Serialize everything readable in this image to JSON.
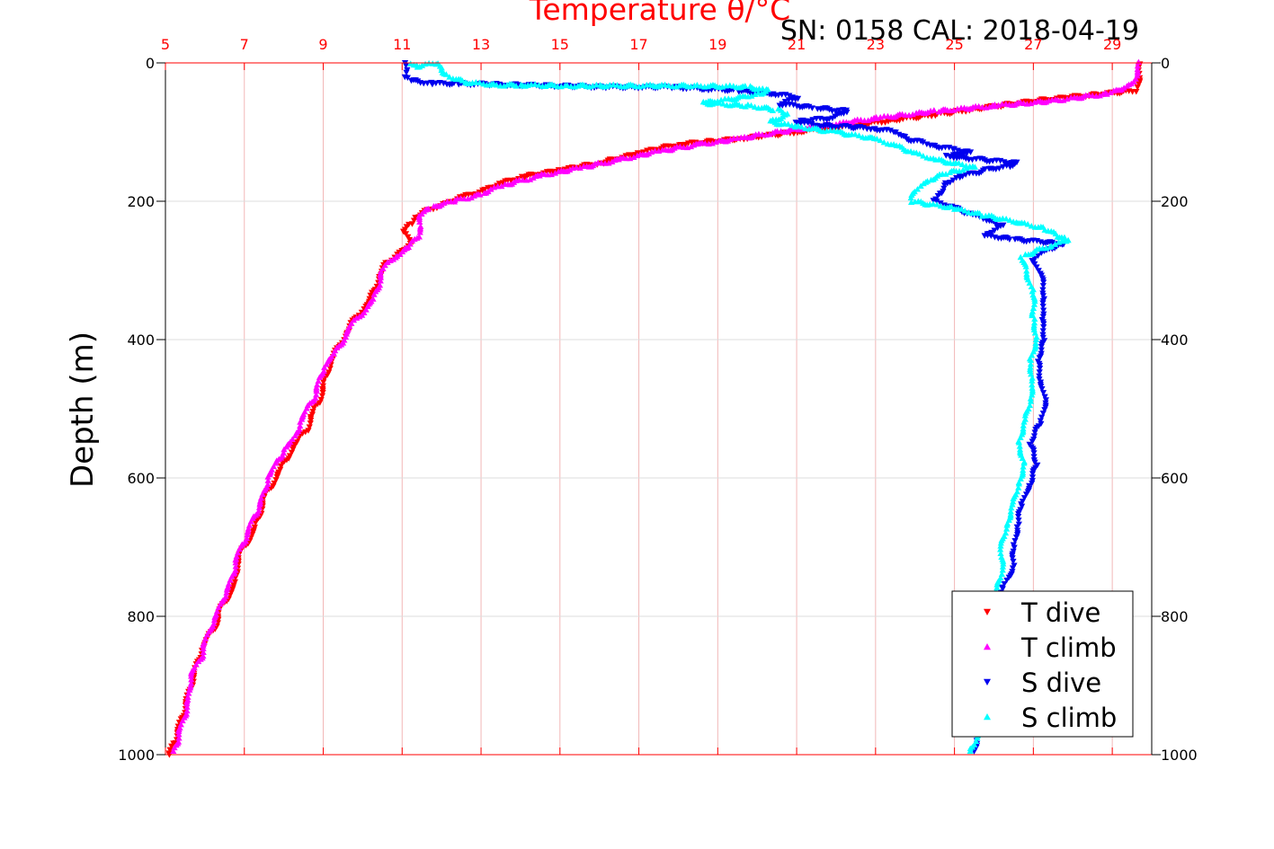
{
  "chart_data": {
    "type": "scatter",
    "title": "Temperature θ/°C",
    "annotation": "SN: 0158  CAL: 2018-04-19",
    "ylabel": "Depth (m)",
    "xlim": [
      5,
      30
    ],
    "ylim": [
      0,
      1000
    ],
    "y_reversed": true,
    "x_ticks": [
      5,
      7,
      9,
      11,
      13,
      15,
      17,
      19,
      21,
      23,
      25,
      27,
      29
    ],
    "y_ticks": [
      0,
      200,
      400,
      600,
      800,
      1000
    ],
    "grid": true,
    "legend_position": "bottom-right",
    "colors": {
      "axis": "#ff0000",
      "t_dive": "#ff0000",
      "t_climb": "#ff00ff",
      "s_dive": "#0000ee",
      "s_climb": "#00ffff"
    },
    "series": [
      {
        "name": "T dive",
        "marker": "triangle-down",
        "color": "#ff0000",
        "points": [
          [
            29.7,
            0
          ],
          [
            29.7,
            20
          ],
          [
            29.6,
            40
          ],
          [
            27.0,
            55
          ],
          [
            24.5,
            75
          ],
          [
            22.5,
            90
          ],
          [
            21.0,
            100
          ],
          [
            19.5,
            110
          ],
          [
            18.0,
            118
          ],
          [
            17.0,
            130
          ],
          [
            16.0,
            145
          ],
          [
            15.0,
            155
          ],
          [
            14.0,
            165
          ],
          [
            13.5,
            175
          ],
          [
            13.0,
            185
          ],
          [
            12.5,
            195
          ],
          [
            12.0,
            205
          ],
          [
            11.6,
            215
          ],
          [
            11.3,
            225
          ],
          [
            11.2,
            235
          ],
          [
            11.0,
            245
          ],
          [
            11.3,
            260
          ],
          [
            10.9,
            275
          ],
          [
            10.6,
            290
          ],
          [
            10.4,
            310
          ],
          [
            10.3,
            330
          ],
          [
            10.1,
            350
          ],
          [
            9.8,
            370
          ],
          [
            9.6,
            390
          ],
          [
            9.4,
            410
          ],
          [
            9.2,
            430
          ],
          [
            9.1,
            450
          ],
          [
            9.0,
            470
          ],
          [
            8.9,
            490
          ],
          [
            8.7,
            510
          ],
          [
            8.6,
            530
          ],
          [
            8.3,
            550
          ],
          [
            8.1,
            570
          ],
          [
            7.9,
            590
          ],
          [
            7.7,
            610
          ],
          [
            7.5,
            630
          ],
          [
            7.4,
            650
          ],
          [
            7.3,
            670
          ],
          [
            7.1,
            690
          ],
          [
            6.9,
            710
          ],
          [
            6.8,
            730
          ],
          [
            6.8,
            750
          ],
          [
            6.6,
            770
          ],
          [
            6.4,
            790
          ],
          [
            6.3,
            810
          ],
          [
            6.1,
            830
          ],
          [
            5.9,
            850
          ],
          [
            5.8,
            870
          ],
          [
            5.7,
            890
          ],
          [
            5.6,
            910
          ],
          [
            5.5,
            930
          ],
          [
            5.4,
            950
          ],
          [
            5.3,
            970
          ],
          [
            5.2,
            985
          ],
          [
            5.1,
            1000
          ]
        ]
      },
      {
        "name": "T climb",
        "marker": "triangle-up",
        "color": "#ff00ff",
        "points": [
          [
            29.7,
            0
          ],
          [
            29.6,
            20
          ],
          [
            29.4,
            35
          ],
          [
            28.8,
            45
          ],
          [
            27.5,
            55
          ],
          [
            26.0,
            62
          ],
          [
            24.5,
            70
          ],
          [
            23.0,
            80
          ],
          [
            21.8,
            90
          ],
          [
            20.5,
            100
          ],
          [
            19.5,
            110
          ],
          [
            18.5,
            118
          ],
          [
            17.5,
            128
          ],
          [
            16.5,
            140
          ],
          [
            15.5,
            152
          ],
          [
            14.5,
            163
          ],
          [
            13.5,
            178
          ],
          [
            13.0,
            190
          ],
          [
            12.3,
            200
          ],
          [
            11.7,
            210
          ],
          [
            11.4,
            220
          ],
          [
            11.5,
            235
          ],
          [
            11.4,
            250
          ],
          [
            11.2,
            265
          ],
          [
            10.8,
            280
          ],
          [
            10.5,
            300
          ],
          [
            10.4,
            320
          ],
          [
            10.3,
            340
          ],
          [
            10.0,
            360
          ],
          [
            9.7,
            380
          ],
          [
            9.5,
            400
          ],
          [
            9.3,
            420
          ],
          [
            9.0,
            440
          ],
          [
            8.9,
            460
          ],
          [
            8.8,
            480
          ],
          [
            8.6,
            500
          ],
          [
            8.4,
            520
          ],
          [
            8.3,
            540
          ],
          [
            8.0,
            560
          ],
          [
            7.8,
            580
          ],
          [
            7.6,
            600
          ],
          [
            7.5,
            620
          ],
          [
            7.4,
            640
          ],
          [
            7.2,
            660
          ],
          [
            7.1,
            680
          ],
          [
            6.9,
            700
          ],
          [
            6.8,
            720
          ],
          [
            6.7,
            740
          ],
          [
            6.6,
            760
          ],
          [
            6.4,
            780
          ],
          [
            6.3,
            800
          ],
          [
            6.1,
            820
          ],
          [
            6.0,
            840
          ],
          [
            5.9,
            860
          ],
          [
            5.7,
            880
          ],
          [
            5.6,
            900
          ],
          [
            5.6,
            920
          ],
          [
            5.5,
            940
          ],
          [
            5.4,
            960
          ],
          [
            5.3,
            980
          ],
          [
            5.2,
            995
          ]
        ]
      },
      {
        "name": "S dive",
        "marker": "triangle-down",
        "color": "#0000ee",
        "points": [
          [
            11.1,
            0
          ],
          [
            11.1,
            10
          ],
          [
            11.1,
            20
          ],
          [
            11.2,
            25
          ],
          [
            11.8,
            30
          ],
          [
            12.4,
            30
          ],
          [
            16.2,
            35
          ],
          [
            17.8,
            35
          ],
          [
            18.8,
            38
          ],
          [
            19.5,
            40
          ],
          [
            20.5,
            45
          ],
          [
            21.0,
            50
          ],
          [
            20.6,
            60
          ],
          [
            21.5,
            65
          ],
          [
            22.3,
            70
          ],
          [
            21.8,
            80
          ],
          [
            21.0,
            85
          ],
          [
            21.5,
            90
          ],
          [
            23.0,
            95
          ],
          [
            23.5,
            100
          ],
          [
            23.8,
            110
          ],
          [
            24.2,
            115
          ],
          [
            24.5,
            120
          ],
          [
            25.0,
            125
          ],
          [
            25.4,
            130
          ],
          [
            24.8,
            135
          ],
          [
            25.7,
            140
          ],
          [
            26.6,
            145
          ],
          [
            26.3,
            150
          ],
          [
            25.8,
            155
          ],
          [
            25.1,
            165
          ],
          [
            24.8,
            175
          ],
          [
            24.6,
            190
          ],
          [
            24.5,
            200
          ],
          [
            25.0,
            210
          ],
          [
            25.5,
            220
          ],
          [
            26.2,
            235
          ],
          [
            25.8,
            250
          ],
          [
            26.5,
            255
          ],
          [
            27.8,
            262
          ],
          [
            27.3,
            270
          ],
          [
            27.0,
            285
          ],
          [
            27.2,
            310
          ],
          [
            27.3,
            340
          ],
          [
            27.2,
            370
          ],
          [
            27.3,
            400
          ],
          [
            27.1,
            430
          ],
          [
            27.2,
            460
          ],
          [
            27.3,
            490
          ],
          [
            27.2,
            520
          ],
          [
            26.9,
            550
          ],
          [
            27.1,
            580
          ],
          [
            26.9,
            610
          ],
          [
            26.7,
            640
          ],
          [
            26.6,
            670
          ],
          [
            26.5,
            700
          ],
          [
            26.5,
            730
          ],
          [
            26.2,
            760
          ],
          [
            26.0,
            790
          ],
          [
            25.9,
            820
          ],
          [
            25.8,
            850
          ],
          [
            25.8,
            880
          ],
          [
            25.8,
            910
          ],
          [
            25.7,
            940
          ],
          [
            25.6,
            970
          ],
          [
            25.5,
            995
          ]
        ]
      },
      {
        "name": "S climb",
        "marker": "triangle-up",
        "color": "#00ffff",
        "points": [
          [
            11.2,
            0
          ],
          [
            11.4,
            5
          ],
          [
            11.9,
            0
          ],
          [
            12.0,
            10
          ],
          [
            12.2,
            20
          ],
          [
            12.6,
            28
          ],
          [
            13.4,
            32
          ],
          [
            14.0,
            32
          ],
          [
            15.2,
            33
          ],
          [
            16.0,
            33
          ],
          [
            18.5,
            33
          ],
          [
            19.8,
            35
          ],
          [
            20.3,
            40
          ],
          [
            20.0,
            45
          ],
          [
            19.6,
            50
          ],
          [
            18.6,
            58
          ],
          [
            19.8,
            62
          ],
          [
            20.5,
            68
          ],
          [
            20.8,
            75
          ],
          [
            20.3,
            85
          ],
          [
            21.0,
            92
          ],
          [
            22.0,
            100
          ],
          [
            23.0,
            110
          ],
          [
            23.5,
            120
          ],
          [
            24.0,
            130
          ],
          [
            24.5,
            140
          ],
          [
            25.0,
            145
          ],
          [
            25.5,
            150
          ],
          [
            24.8,
            160
          ],
          [
            24.3,
            170
          ],
          [
            24.0,
            185
          ],
          [
            23.9,
            200
          ],
          [
            25.0,
            210
          ],
          [
            25.7,
            220
          ],
          [
            26.6,
            230
          ],
          [
            27.3,
            240
          ],
          [
            27.6,
            250
          ],
          [
            27.9,
            255
          ],
          [
            27.4,
            265
          ],
          [
            26.7,
            280
          ],
          [
            26.8,
            300
          ],
          [
            27.0,
            330
          ],
          [
            27.0,
            370
          ],
          [
            27.1,
            400
          ],
          [
            26.9,
            430
          ],
          [
            27.0,
            460
          ],
          [
            26.9,
            490
          ],
          [
            26.8,
            520
          ],
          [
            26.6,
            550
          ],
          [
            26.8,
            580
          ],
          [
            26.6,
            610
          ],
          [
            26.5,
            640
          ],
          [
            26.3,
            670
          ],
          [
            26.2,
            700
          ],
          [
            26.2,
            730
          ],
          [
            26.1,
            760
          ],
          [
            26.0,
            790
          ],
          [
            25.9,
            820
          ],
          [
            25.8,
            850
          ],
          [
            25.8,
            880
          ],
          [
            25.8,
            910
          ],
          [
            25.7,
            940
          ],
          [
            25.6,
            970
          ],
          [
            25.4,
            995
          ]
        ]
      }
    ]
  }
}
